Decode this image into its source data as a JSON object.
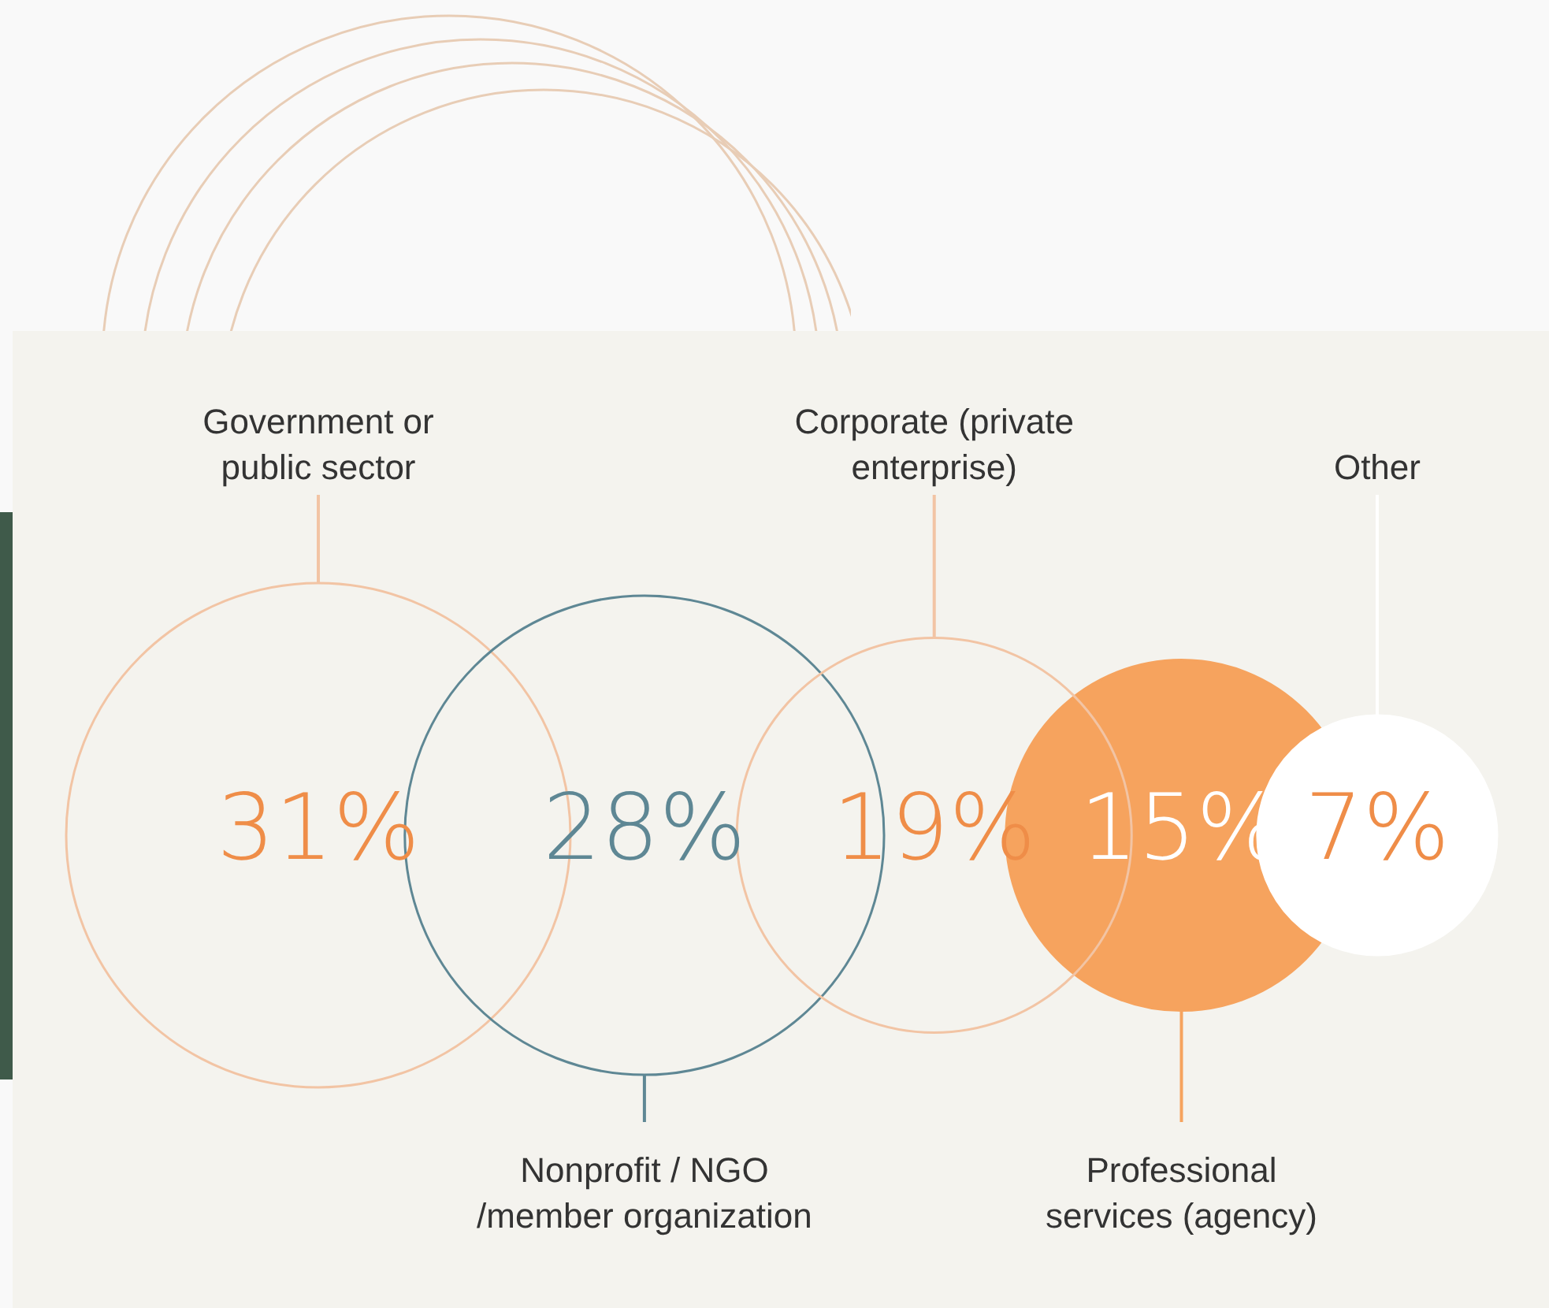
{
  "chart_data": {
    "type": "other",
    "categories": [
      "Government or\npublic sector",
      "Nonprofit / NGO\n/member organization",
      "Corporate (private\nenterprise)",
      "Professional\nservices (agency)",
      "Other"
    ],
    "values": [
      31,
      28,
      19,
      15,
      7
    ],
    "value_labels": [
      "31%",
      "28%",
      "19%",
      "15%",
      "7%"
    ],
    "colors": [
      "#f2c4a4",
      "#5e8794",
      "#f2c4a4",
      "#f6a35e",
      "#ffffff"
    ]
  }
}
